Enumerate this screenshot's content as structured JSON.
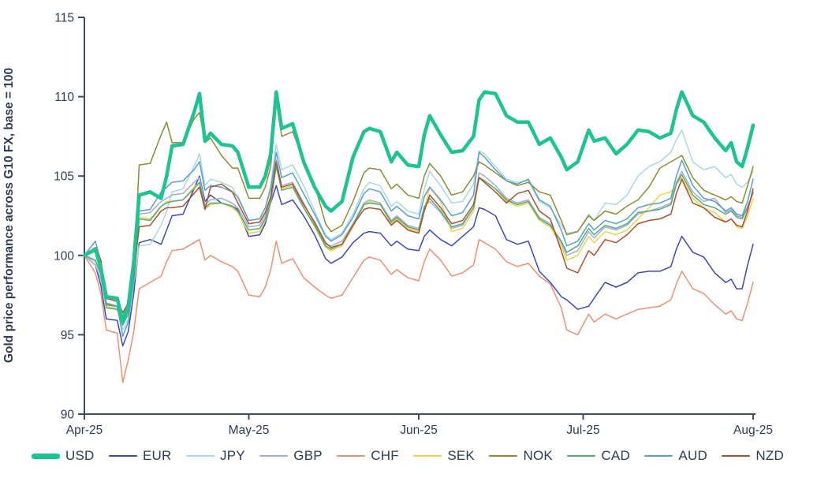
{
  "axis_style": {
    "text_color": "#2e3c55",
    "line_color": "#3f4b63"
  },
  "chart_data": {
    "type": "line",
    "title": "",
    "xlabel": "",
    "ylabel": "Gold price performance across G10 FX, base = 100",
    "ylim": [
      90,
      115
    ],
    "yticks": [
      90,
      95,
      100,
      105,
      110,
      115
    ],
    "xtick_labels": [
      "Apr-25",
      "May-25",
      "Jun-25",
      "Jul-25",
      "Aug-25"
    ],
    "xtick_days": [
      0,
      30,
      61,
      91,
      122
    ],
    "x_range_days": [
      0,
      122
    ],
    "grid": false,
    "legend_position": "bottom",
    "x_days": [
      0,
      2,
      3,
      4,
      6,
      7,
      8,
      9,
      10,
      12,
      14,
      15,
      16,
      18,
      20,
      21,
      22,
      23,
      25,
      27,
      28,
      30,
      32,
      33,
      34,
      35,
      36,
      38,
      40,
      42,
      44,
      45,
      47,
      49,
      51,
      52,
      54,
      56,
      57,
      59,
      61,
      62,
      63,
      65,
      67,
      69,
      71,
      72,
      73,
      75,
      77,
      79,
      81,
      83,
      85,
      87,
      88,
      90,
      92,
      93,
      95,
      97,
      99,
      101,
      103,
      105,
      107,
      108,
      109,
      111,
      113,
      115,
      117,
      118,
      119,
      120,
      121,
      122
    ],
    "series": [
      {
        "name": "USD",
        "color": "#1dc492",
        "line_width": 4.5,
        "values": [
          100,
          100.4,
          99.2,
          97.4,
          97.3,
          95.8,
          96.8,
          99.6,
          103.8,
          104,
          103.6,
          105,
          106.9,
          107,
          109,
          110.2,
          107.2,
          107.7,
          107,
          106.9,
          106.5,
          104.3,
          104.3,
          105,
          106.4,
          110.3,
          108,
          108.3,
          105.9,
          104.3,
          103.1,
          102.8,
          103.4,
          106.2,
          107.8,
          108,
          107.8,
          105.9,
          106.5,
          105.7,
          105.6,
          107.6,
          108.8,
          107.6,
          106.5,
          106.6,
          107.5,
          109.8,
          110.3,
          110.2,
          108.8,
          108.4,
          108.4,
          107,
          107.4,
          106.2,
          105.4,
          105.9,
          107.9,
          107.2,
          107.4,
          106.4,
          107,
          107.9,
          107.8,
          107.4,
          107.7,
          109.2,
          110.3,
          108.8,
          108.4,
          107.4,
          106.6,
          107.1,
          105.9,
          105.6,
          106.8,
          108.2
        ]
      },
      {
        "name": "EUR",
        "color": "#3c49b0",
        "line_width": 1.5,
        "values": [
          100,
          99.4,
          98.1,
          96,
          95.9,
          94.3,
          95.2,
          97.6,
          100.8,
          101,
          100.7,
          101.6,
          102.5,
          102.6,
          104.2,
          105,
          103.4,
          103.8,
          103.3,
          103.1,
          102.9,
          101.2,
          101.3,
          102,
          103.3,
          104.4,
          103.2,
          103.5,
          102.5,
          101.3,
          99.8,
          99.5,
          99.9,
          100.8,
          101.4,
          101.5,
          101.4,
          100.6,
          100.9,
          100.4,
          100.3,
          101.2,
          101.6,
          101,
          100.6,
          101.2,
          101.8,
          103,
          102.9,
          102.5,
          101,
          100.7,
          100.9,
          99,
          98.3,
          97.4,
          97.2,
          96.6,
          96.8,
          97.3,
          98.3,
          98,
          98.3,
          98.9,
          99,
          99,
          99.3,
          100.4,
          101.2,
          100.2,
          99.9,
          98.9,
          98.3,
          98.5,
          97.9,
          97.9,
          99.4,
          100.7
        ]
      },
      {
        "name": "JPY",
        "color": "#a6d9e4",
        "line_width": 1.5,
        "values": [
          100,
          99.6,
          98.8,
          96.9,
          96.7,
          95.3,
          96,
          98.2,
          100.6,
          100.7,
          101.9,
          102.8,
          104,
          104.2,
          105.6,
          106.4,
          104.4,
          104.8,
          104.6,
          104.3,
          103.6,
          102.2,
          102.3,
          103,
          104.4,
          107,
          105.4,
          105.7,
          104.4,
          102.8,
          101.3,
          101,
          101.4,
          102.6,
          104.2,
          104.6,
          104.4,
          103.1,
          103.4,
          102.8,
          102.6,
          104.2,
          105.3,
          104.4,
          103.3,
          103.4,
          104.5,
          106.6,
          106.4,
          105.6,
          104.8,
          104.6,
          104.7,
          103.4,
          103,
          101.9,
          101.4,
          101.5,
          102.6,
          102.2,
          103.3,
          103.2,
          103.8,
          105,
          105.6,
          105.9,
          106.5,
          107.3,
          107.9,
          105.9,
          105.4,
          105.6,
          104.9,
          105.1,
          104.5,
          104.3,
          104.6,
          105.3
        ]
      },
      {
        "name": "GBP",
        "color": "#a9aade",
        "line_width": 1.5,
        "values": [
          100,
          99.4,
          98.5,
          96.9,
          96.8,
          96.2,
          96.8,
          98.6,
          102.6,
          102.7,
          103.4,
          103.6,
          103.8,
          103.9,
          104.6,
          104.9,
          103.2,
          103.5,
          103.6,
          103.3,
          103,
          101.8,
          101.9,
          102.5,
          103.5,
          106,
          104.4,
          104.6,
          103.3,
          102,
          100.7,
          100.6,
          100.9,
          102,
          103.3,
          103.5,
          103.3,
          102.2,
          102.5,
          101.9,
          101.7,
          103.1,
          103.4,
          102.7,
          101.7,
          101.9,
          103,
          105.2,
          105,
          104.4,
          103.6,
          103.3,
          103.5,
          102.4,
          102,
          100.8,
          100,
          100.3,
          101.5,
          101.1,
          101.8,
          101.6,
          101.9,
          102.6,
          102.8,
          103,
          103.3,
          104.6,
          105.3,
          104,
          103.4,
          103.6,
          102.7,
          102.9,
          102.5,
          102.4,
          103.1,
          103.9
        ]
      },
      {
        "name": "CHF",
        "color": "#ee8f74",
        "line_width": 1.5,
        "values": [
          100,
          98.9,
          97.6,
          95.3,
          95.1,
          92,
          93.4,
          95.2,
          97.9,
          98.3,
          98.7,
          99.6,
          100.3,
          100.4,
          100.8,
          101,
          99.7,
          100,
          99.6,
          99.3,
          99,
          97.5,
          97.4,
          98,
          99.1,
          100.9,
          99.5,
          99.8,
          98.6,
          98,
          97.5,
          97.3,
          97.5,
          98.6,
          99.7,
          99.9,
          99.7,
          98.8,
          99.1,
          98.6,
          98.4,
          99.6,
          100.4,
          99.7,
          98.7,
          98.9,
          99.4,
          101,
          100.8,
          100.4,
          99.6,
          99.3,
          99.5,
          98.7,
          98.2,
          96.7,
          95.3,
          95,
          96.3,
          95.8,
          96.3,
          96,
          96.3,
          96.6,
          96.7,
          96.8,
          97.2,
          98.2,
          99,
          97.9,
          97.6,
          96.9,
          96.3,
          96.5,
          96,
          95.9,
          97,
          98.3
        ]
      },
      {
        "name": "SEK",
        "color": "#eed24a",
        "line_width": 1.5,
        "values": [
          100,
          100.2,
          98.9,
          96.8,
          96.6,
          95.9,
          96.5,
          98.4,
          102.4,
          102.3,
          103.1,
          103.4,
          103.4,
          103.5,
          104.3,
          104.6,
          102.9,
          103.2,
          103.3,
          103,
          102.7,
          101.4,
          101.5,
          102.2,
          103.3,
          105.8,
          104.2,
          104.4,
          103,
          101.8,
          100.5,
          100.3,
          100.6,
          101.8,
          103.2,
          103.4,
          103.2,
          102,
          102.3,
          101.7,
          101.5,
          102.9,
          104.3,
          103.4,
          101.5,
          101.7,
          102.8,
          104.9,
          104.7,
          104.2,
          103.4,
          103.1,
          103.3,
          102.2,
          101.8,
          100.6,
          99.7,
          100,
          101.2,
          100.8,
          101.5,
          101.3,
          101.6,
          102.3,
          103,
          103.8,
          104,
          104.5,
          104.9,
          103.6,
          103,
          102.7,
          102.1,
          102.3,
          101.8,
          101.7,
          102.5,
          103.6
        ]
      },
      {
        "name": "NOK",
        "color": "#8b8c35",
        "line_width": 1.5,
        "values": [
          100,
          100.3,
          99.5,
          96.9,
          96.8,
          96.2,
          96.9,
          99,
          105.7,
          105.8,
          107.6,
          108.4,
          107.1,
          107.1,
          108.6,
          109,
          107.1,
          107.4,
          106.3,
          105.5,
          105.5,
          103.6,
          103.6,
          104.3,
          105.6,
          109.7,
          107.5,
          107.8,
          106,
          104.5,
          102,
          101.5,
          101.9,
          103.4,
          105.2,
          105.5,
          105.4,
          104.2,
          104.5,
          103.8,
          103.6,
          105,
          105.8,
          105,
          103.8,
          104,
          105,
          105.9,
          105.7,
          105.2,
          104.7,
          104.4,
          104.6,
          104,
          103.8,
          102.2,
          101.3,
          101.5,
          102.5,
          102.2,
          102.8,
          102.6,
          103.1,
          103.5,
          104.3,
          105.5,
          105.9,
          106.1,
          106.3,
          104.9,
          104.1,
          103.8,
          103.5,
          103.7,
          103.4,
          103.3,
          104.4,
          105.6
        ]
      },
      {
        "name": "CAD",
        "color": "#52ad72",
        "line_width": 1.5,
        "values": [
          100,
          99.7,
          98.8,
          96.7,
          96.6,
          95.6,
          96.3,
          98.3,
          102.3,
          102.2,
          103.1,
          103.3,
          103.4,
          103.5,
          104.2,
          104.6,
          103,
          103.3,
          103.3,
          103.1,
          102.8,
          101.6,
          101.7,
          102.3,
          103.4,
          105.6,
          104.1,
          104.3,
          103,
          101.9,
          100.6,
          100.4,
          100.7,
          101.9,
          103.2,
          103.3,
          103.2,
          102.1,
          102.4,
          101.8,
          101.6,
          103,
          103.6,
          102.8,
          101.8,
          102,
          103,
          104.9,
          104.7,
          104.2,
          103.5,
          103.2,
          103.4,
          102.3,
          101.9,
          100.9,
          100.2,
          100.6,
          101.7,
          101.3,
          101.9,
          101.7,
          102,
          102.7,
          102.8,
          102.9,
          103.2,
          104.5,
          105.1,
          103.8,
          103.2,
          103,
          102.6,
          102.8,
          102.4,
          102.3,
          103,
          104
        ]
      },
      {
        "name": "AUD",
        "color": "#58a0c6",
        "line_width": 1.5,
        "values": [
          100,
          100.9,
          99.6,
          97,
          96.8,
          94.9,
          95.8,
          98.5,
          102.8,
          102.9,
          104,
          104.3,
          104.6,
          104.7,
          105.4,
          105.9,
          104.1,
          104.4,
          104.3,
          104,
          103.7,
          102.2,
          102.3,
          103,
          104.2,
          106.5,
          104.9,
          105.2,
          103.9,
          102.6,
          101.2,
          100.9,
          101.3,
          102.4,
          103.9,
          104.2,
          104,
          102.8,
          103.1,
          102.5,
          102.3,
          103.7,
          104.3,
          103.5,
          102.5,
          102.7,
          103.8,
          106.5,
          106.2,
          105.4,
          104.7,
          104.5,
          104.8,
          103.5,
          103.1,
          101.6,
          100.6,
          100.9,
          102,
          101.6,
          102.2,
          102,
          102.3,
          103,
          103.2,
          103.3,
          103.6,
          105,
          106,
          104.4,
          103.6,
          103.4,
          102.8,
          103,
          102.6,
          102.5,
          103.4,
          104.8
        ]
      },
      {
        "name": "NZD",
        "color": "#a9502f",
        "line_width": 1.5,
        "values": [
          100,
          100.5,
          99.7,
          97.3,
          97.1,
          96.4,
          97,
          98.8,
          101.8,
          101.9,
          102.8,
          103,
          103,
          103.1,
          103.9,
          104.3,
          102.9,
          104.3,
          104.5,
          104,
          103.3,
          102,
          102.1,
          102.7,
          103.7,
          105.9,
          104.3,
          104.5,
          103.2,
          102.1,
          100.8,
          100.5,
          100.7,
          101.9,
          102.9,
          103,
          102.9,
          101.9,
          102.2,
          101.6,
          101.4,
          102.8,
          103.8,
          103,
          102,
          102.2,
          103.2,
          104.9,
          104.6,
          104,
          103.3,
          103.9,
          104.1,
          102.8,
          102.3,
          100.3,
          99.2,
          98.9,
          100.3,
          100,
          101,
          100.8,
          101.3,
          102,
          102.2,
          102.3,
          102.6,
          103.9,
          104.8,
          103.3,
          103,
          102.4,
          102.1,
          102.3,
          101.9,
          101.8,
          102.8,
          104.2
        ]
      }
    ]
  }
}
